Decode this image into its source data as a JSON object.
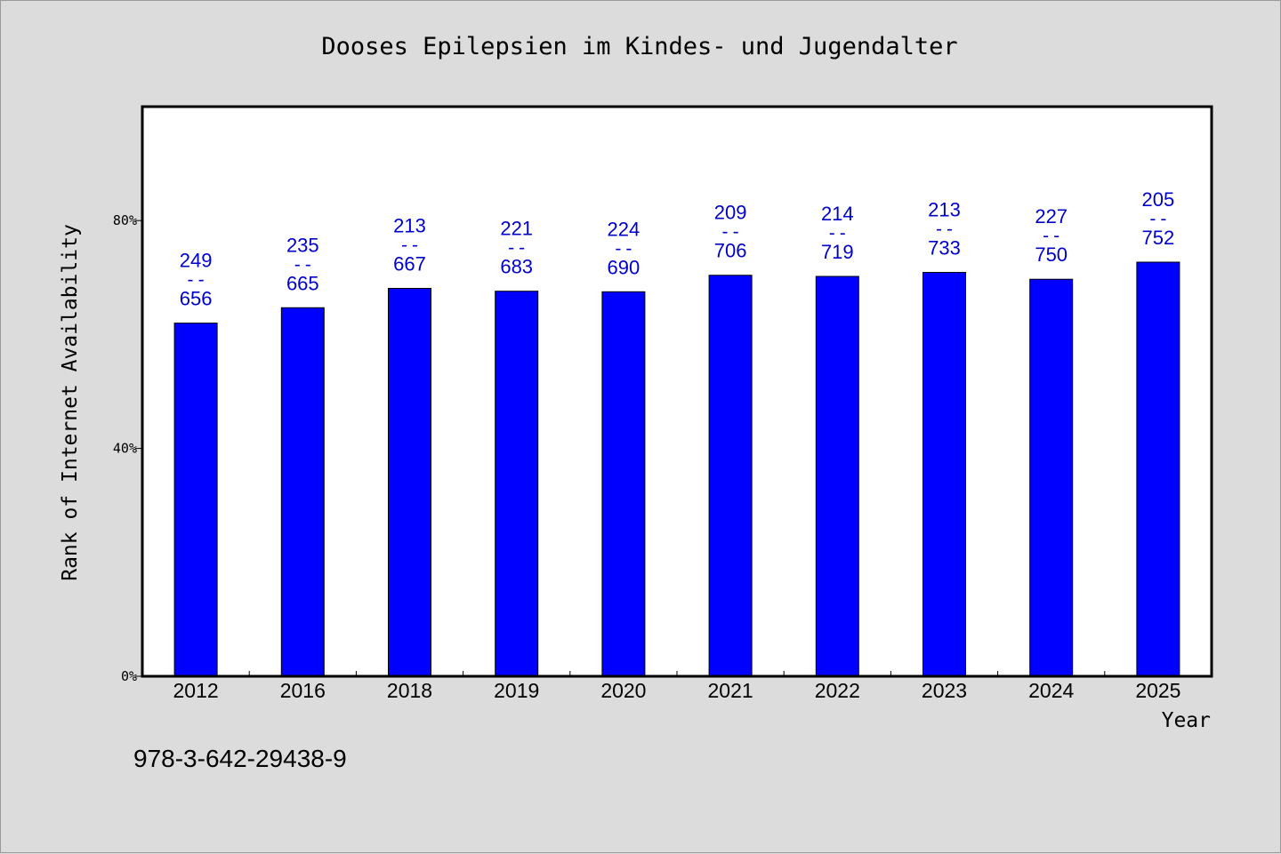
{
  "chart_data": {
    "type": "bar",
    "title": "Dooses Epilepsien im Kindes- und Jugendalter",
    "xlabel": "Year",
    "ylabel": "Rank of Internet Availability",
    "ylim": [
      0,
      100
    ],
    "yticks": [
      {
        "value": 0,
        "label": "0%"
      },
      {
        "value": 40,
        "label": "40%"
      },
      {
        "value": 80,
        "label": "80%"
      }
    ],
    "categories": [
      "2012",
      "2016",
      "2018",
      "2019",
      "2020",
      "2021",
      "2022",
      "2023",
      "2024",
      "2025"
    ],
    "values": [
      62.0,
      64.7,
      68.1,
      67.6,
      67.5,
      70.4,
      70.2,
      70.9,
      69.7,
      72.7
    ],
    "data_labels": [
      {
        "top": "249",
        "sep": "--",
        "bottom": "656"
      },
      {
        "top": "235",
        "sep": "--",
        "bottom": "665"
      },
      {
        "top": "213",
        "sep": "--",
        "bottom": "667"
      },
      {
        "top": "221",
        "sep": "--",
        "bottom": "683"
      },
      {
        "top": "224",
        "sep": "--",
        "bottom": "690"
      },
      {
        "top": "209",
        "sep": "--",
        "bottom": "706"
      },
      {
        "top": "214",
        "sep": "--",
        "bottom": "719"
      },
      {
        "top": "213",
        "sep": "--",
        "bottom": "733"
      },
      {
        "top": "227",
        "sep": "--",
        "bottom": "750"
      },
      {
        "top": "205",
        "sep": "--",
        "bottom": "752"
      }
    ],
    "grid": false,
    "colors": {
      "bar": "#0000ff",
      "label": "#0000cc",
      "background": "#dcdcdc",
      "plot_background": "#ffffff"
    }
  },
  "footer": {
    "isbn": "978-3-642-29438-9"
  }
}
